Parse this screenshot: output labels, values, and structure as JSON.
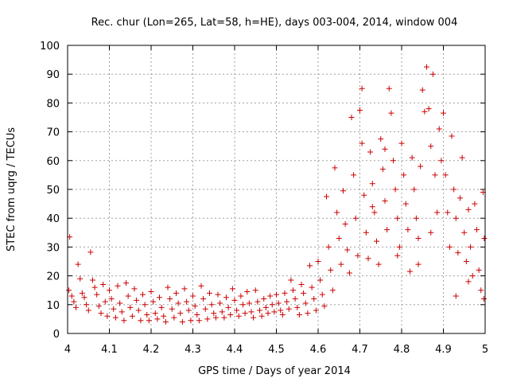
{
  "chart_data": {
    "type": "scatter",
    "title": "Rec. chur (Lon=265, Lat=58, h=HE), days 003-004, 2014, window 004",
    "xlabel": "GPS time / Days of year 2014",
    "ylabel": "STEC from uqrg / TECUs",
    "xlim": [
      4,
      5
    ],
    "ylim": [
      0,
      100
    ],
    "xticks": [
      "4",
      "4.1",
      "4.2",
      "4.3",
      "4.4",
      "4.5",
      "4.6",
      "4.7",
      "4.8",
      "4.9",
      "5"
    ],
    "yticks": [
      "0",
      "10",
      "20",
      "30",
      "40",
      "50",
      "60",
      "70",
      "80",
      "90",
      "100"
    ],
    "grid": true,
    "marker": "plus",
    "series_color": "#cc0000",
    "points": [
      [
        4.005,
        33.5
      ],
      [
        4.025,
        24.0
      ],
      [
        4.055,
        28.2
      ],
      [
        4.003,
        15.0
      ],
      [
        4.01,
        13.0
      ],
      [
        4.015,
        11.0
      ],
      [
        4.02,
        9.0
      ],
      [
        4.03,
        19.0
      ],
      [
        4.035,
        14.0
      ],
      [
        4.04,
        12.5
      ],
      [
        4.045,
        10.0
      ],
      [
        4.05,
        8.0
      ],
      [
        4.06,
        18.5
      ],
      [
        4.065,
        16.0
      ],
      [
        4.07,
        13.5
      ],
      [
        4.075,
        9.5
      ],
      [
        4.08,
        7.0
      ],
      [
        4.085,
        17.0
      ],
      [
        4.09,
        11.0
      ],
      [
        4.095,
        6.0
      ],
      [
        4.1,
        15.0
      ],
      [
        4.105,
        12.0
      ],
      [
        4.11,
        8.5
      ],
      [
        4.115,
        5.5
      ],
      [
        4.12,
        16.5
      ],
      [
        4.125,
        10.5
      ],
      [
        4.13,
        7.5
      ],
      [
        4.135,
        4.5
      ],
      [
        4.14,
        17.5
      ],
      [
        4.145,
        13.0
      ],
      [
        4.15,
        9.0
      ],
      [
        4.155,
        6.0
      ],
      [
        4.16,
        15.5
      ],
      [
        4.165,
        11.5
      ],
      [
        4.17,
        8.0
      ],
      [
        4.175,
        4.5
      ],
      [
        4.18,
        13.5
      ],
      [
        4.185,
        10.0
      ],
      [
        4.19,
        6.5
      ],
      [
        4.195,
        4.5
      ],
      [
        4.2,
        14.5
      ],
      [
        4.205,
        11.0
      ],
      [
        4.21,
        7.0
      ],
      [
        4.215,
        5.0
      ],
      [
        4.22,
        12.5
      ],
      [
        4.225,
        9.0
      ],
      [
        4.23,
        6.0
      ],
      [
        4.235,
        4.0
      ],
      [
        4.24,
        16.0
      ],
      [
        4.245,
        12.0
      ],
      [
        4.25,
        8.5
      ],
      [
        4.255,
        5.5
      ],
      [
        4.26,
        14.0
      ],
      [
        4.265,
        10.5
      ],
      [
        4.27,
        7.0
      ],
      [
        4.275,
        4.0
      ],
      [
        4.28,
        15.5
      ],
      [
        4.285,
        11.0
      ],
      [
        4.29,
        8.0
      ],
      [
        4.295,
        4.5
      ],
      [
        4.3,
        13.0
      ],
      [
        4.305,
        9.5
      ],
      [
        4.31,
        6.5
      ],
      [
        4.315,
        4.5
      ],
      [
        4.32,
        16.5
      ],
      [
        4.325,
        12.0
      ],
      [
        4.33,
        8.5
      ],
      [
        4.335,
        5.0
      ],
      [
        4.34,
        14.0
      ],
      [
        4.345,
        10.0
      ],
      [
        4.35,
        7.0
      ],
      [
        4.355,
        5.5
      ],
      [
        4.36,
        13.5
      ],
      [
        4.365,
        10.5
      ],
      [
        4.37,
        7.5
      ],
      [
        4.375,
        5.5
      ],
      [
        4.38,
        12.5
      ],
      [
        4.385,
        9.0
      ],
      [
        4.39,
        6.5
      ],
      [
        4.395,
        15.5
      ],
      [
        4.4,
        11.5
      ],
      [
        4.405,
        8.0
      ],
      [
        4.41,
        6.0
      ],
      [
        4.415,
        13.0
      ],
      [
        4.42,
        10.0
      ],
      [
        4.425,
        7.0
      ],
      [
        4.43,
        14.5
      ],
      [
        4.435,
        10.5
      ],
      [
        4.44,
        7.5
      ],
      [
        4.445,
        5.5
      ],
      [
        4.45,
        15.0
      ],
      [
        4.455,
        11.0
      ],
      [
        4.46,
        8.0
      ],
      [
        4.465,
        6.0
      ],
      [
        4.47,
        12.0
      ],
      [
        4.475,
        9.0
      ],
      [
        4.48,
        7.0
      ],
      [
        4.485,
        13.0
      ],
      [
        4.49,
        10.0
      ],
      [
        4.495,
        7.5
      ],
      [
        4.5,
        13.5
      ],
      [
        4.505,
        10.5
      ],
      [
        4.51,
        8.0
      ],
      [
        4.515,
        6.5
      ],
      [
        4.52,
        14.0
      ],
      [
        4.525,
        11.0
      ],
      [
        4.53,
        8.5
      ],
      [
        4.535,
        18.5
      ],
      [
        4.54,
        15.0
      ],
      [
        4.545,
        12.0
      ],
      [
        4.55,
        9.0
      ],
      [
        4.555,
        6.5
      ],
      [
        4.56,
        17.0
      ],
      [
        4.565,
        14.0
      ],
      [
        4.57,
        10.5
      ],
      [
        4.575,
        7.0
      ],
      [
        4.58,
        23.5
      ],
      [
        4.585,
        16.0
      ],
      [
        4.59,
        12.0
      ],
      [
        4.595,
        8.0
      ],
      [
        4.6,
        25.0
      ],
      [
        4.605,
        18.5
      ],
      [
        4.61,
        13.5
      ],
      [
        4.615,
        9.5
      ],
      [
        4.62,
        47.5
      ],
      [
        4.625,
        30.0
      ],
      [
        4.63,
        22.0
      ],
      [
        4.635,
        15.0
      ],
      [
        4.64,
        57.5
      ],
      [
        4.645,
        42.0
      ],
      [
        4.65,
        33.0
      ],
      [
        4.655,
        24.0
      ],
      [
        4.66,
        49.5
      ],
      [
        4.665,
        38.0
      ],
      [
        4.67,
        29.0
      ],
      [
        4.675,
        21.0
      ],
      [
        4.68,
        75.0
      ],
      [
        4.685,
        55.0
      ],
      [
        4.69,
        40.0
      ],
      [
        4.695,
        27.0
      ],
      [
        4.7,
        77.5
      ],
      [
        4.705,
        66.0
      ],
      [
        4.71,
        48.0
      ],
      [
        4.715,
        35.0
      ],
      [
        4.72,
        26.0
      ],
      [
        4.725,
        63.0
      ],
      [
        4.73,
        52.0
      ],
      [
        4.735,
        42.0
      ],
      [
        4.74,
        32.0
      ],
      [
        4.745,
        24.0
      ],
      [
        4.75,
        67.5
      ],
      [
        4.755,
        57.0
      ],
      [
        4.76,
        46.0
      ],
      [
        4.765,
        36.0
      ],
      [
        4.77,
        85.0
      ],
      [
        4.775,
        76.5
      ],
      [
        4.78,
        60.0
      ],
      [
        4.785,
        50.0
      ],
      [
        4.79,
        40.0
      ],
      [
        4.795,
        30.0
      ],
      [
        4.8,
        66.0
      ],
      [
        4.805,
        55.0
      ],
      [
        4.81,
        45.0
      ],
      [
        4.815,
        36.0
      ],
      [
        4.82,
        21.5
      ],
      [
        4.825,
        61.0
      ],
      [
        4.83,
        50.0
      ],
      [
        4.835,
        40.0
      ],
      [
        4.84,
        33.0
      ],
      [
        4.845,
        58.0
      ],
      [
        4.85,
        84.5
      ],
      [
        4.855,
        77.0
      ],
      [
        4.86,
        92.5
      ],
      [
        4.865,
        78.0
      ],
      [
        4.87,
        65.0
      ],
      [
        4.875,
        90.0
      ],
      [
        4.88,
        55.0
      ],
      [
        4.885,
        42.0
      ],
      [
        4.89,
        71.0
      ],
      [
        4.895,
        60.0
      ],
      [
        4.9,
        76.5
      ],
      [
        4.905,
        55.0
      ],
      [
        4.91,
        42.0
      ],
      [
        4.915,
        30.0
      ],
      [
        4.92,
        68.5
      ],
      [
        4.925,
        50.0
      ],
      [
        4.93,
        40.0
      ],
      [
        4.935,
        28.0
      ],
      [
        4.94,
        47.0
      ],
      [
        4.945,
        61.0
      ],
      [
        4.95,
        35.0
      ],
      [
        4.955,
        25.0
      ],
      [
        4.96,
        43.0
      ],
      [
        4.965,
        30.0
      ],
      [
        4.97,
        20.0
      ],
      [
        4.975,
        45.0
      ],
      [
        4.98,
        36.0
      ],
      [
        4.985,
        22.0
      ],
      [
        4.99,
        15.0
      ],
      [
        4.995,
        49.0
      ],
      [
        4.998,
        33.0
      ],
      [
        4.997,
        12.0
      ],
      [
        4.705,
        85.0
      ],
      [
        4.73,
        44.0
      ],
      [
        4.76,
        64.0
      ],
      [
        4.79,
        27.0
      ],
      [
        4.84,
        24.0
      ],
      [
        4.87,
        35.0
      ],
      [
        4.93,
        13.0
      ],
      [
        4.96,
        18.0
      ]
    ]
  }
}
